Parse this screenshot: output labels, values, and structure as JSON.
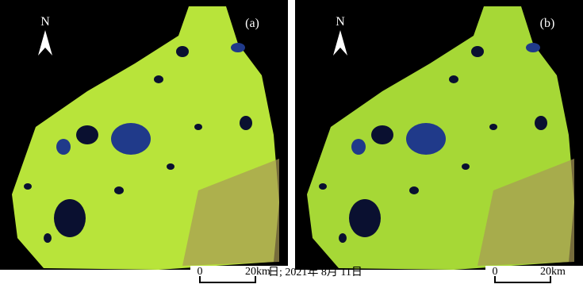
{
  "panels": [
    {
      "label": "(a)",
      "north": "N",
      "scale_start": "0",
      "scale_end": "20km"
    },
    {
      "label": "(b)",
      "north": "N",
      "scale_start": "0",
      "scale_end": "20km"
    }
  ],
  "caption": "日; 2021年 8月 11日"
}
